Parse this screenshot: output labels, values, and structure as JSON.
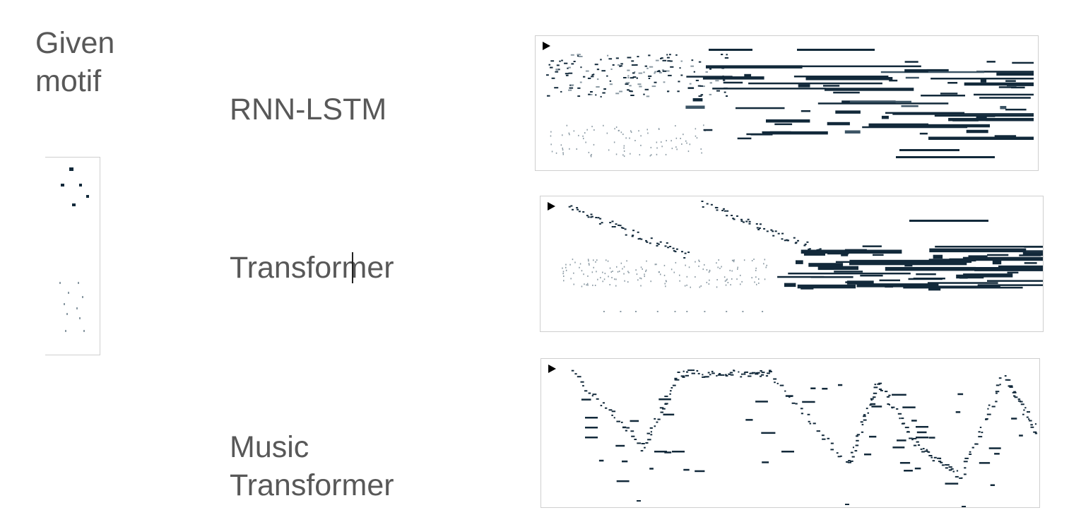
{
  "given_motif_label": "Given motif",
  "rows": [
    {
      "label": "RNN-LSTM",
      "id": "rnn"
    },
    {
      "label": "Transformer",
      "id": "transformer"
    },
    {
      "label": "Music Transformer",
      "id": "music"
    }
  ],
  "colors": {
    "note_dark": "#12293a",
    "note_mid": "#3d5566",
    "note_light": "#8a99a3",
    "panel_border": "#cfcfcf"
  },
  "icons": {
    "play": "play-icon"
  }
}
